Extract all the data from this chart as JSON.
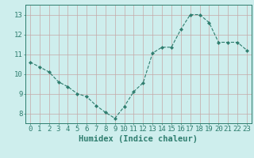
{
  "x": [
    0,
    1,
    2,
    3,
    4,
    5,
    6,
    7,
    8,
    9,
    10,
    11,
    12,
    13,
    14,
    15,
    16,
    17,
    18,
    19,
    20,
    21,
    22,
    23
  ],
  "y": [
    10.6,
    10.35,
    10.1,
    9.6,
    9.35,
    9.0,
    8.85,
    8.4,
    8.05,
    7.75,
    8.35,
    9.1,
    9.55,
    11.05,
    11.35,
    11.35,
    12.25,
    13.0,
    13.0,
    12.6,
    11.6,
    11.6,
    11.6,
    11.2
  ],
  "xlabel": "Humidex (Indice chaleur)",
  "xlim": [
    -0.5,
    23.5
  ],
  "ylim": [
    7.5,
    13.5
  ],
  "yticks": [
    8,
    9,
    10,
    11,
    12,
    13
  ],
  "xticks": [
    0,
    1,
    2,
    3,
    4,
    5,
    6,
    7,
    8,
    9,
    10,
    11,
    12,
    13,
    14,
    15,
    16,
    17,
    18,
    19,
    20,
    21,
    22,
    23
  ],
  "line_color": "#2e7d6e",
  "marker": "D",
  "marker_size": 2.2,
  "bg_color": "#ceeeed",
  "grid_color": "#c4a8a8",
  "axis_color": "#2e7d6e",
  "tick_label_color": "#2e7d6e",
  "xlabel_color": "#2e7d6e",
  "xlabel_fontsize": 7.5,
  "tick_fontsize": 6.5
}
